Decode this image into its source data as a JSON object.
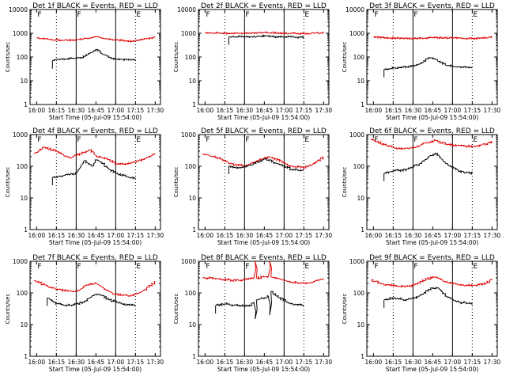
{
  "figure": {
    "xlabel": "Start Time (05-Jul-09 15:54:00)",
    "ylabel": "Counts/sec",
    "colors": {
      "events": "#000000",
      "lld": "#e00000"
    }
  },
  "chart_data": [
    {
      "type": "line",
      "panel": 1,
      "title": "Det 1f BLACK = Events, RED = LLD",
      "xlabel": "Start Time (05-Jul-09 15:54:00)",
      "ylabel": "Counts/sec",
      "x_ticks": [
        "16:00",
        "16:15",
        "16:30",
        "16:45",
        "17:00",
        "17:15",
        "17:30"
      ],
      "y_ticks": [
        "1",
        "10",
        "100",
        "1000",
        "10000"
      ],
      "y_scale": "log",
      "ylim": [
        1,
        10000
      ],
      "markers": [
        "F",
        "E"
      ],
      "series": [
        {
          "color": "#e00000",
          "x": [
            "16:00",
            "16:10",
            "16:20",
            "16:30",
            "16:38",
            "16:45",
            "16:52",
            "17:00",
            "17:10",
            "17:20",
            "17:30"
          ],
          "values": [
            620,
            560,
            500,
            520,
            620,
            700,
            600,
            520,
            460,
            540,
            680
          ]
        },
        {
          "color": "#000000",
          "x": [
            "16:12",
            "16:16",
            "16:25",
            "16:34",
            "16:40",
            "16:45",
            "16:50",
            "16:57",
            "17:05",
            "17:12",
            "17:15"
          ],
          "values": [
            70,
            80,
            85,
            95,
            140,
            210,
            130,
            85,
            78,
            75,
            78
          ]
        }
      ]
    },
    {
      "type": "line",
      "panel": 2,
      "title": "Det 2f BLACK = Events, RED = LLD",
      "xlabel": "Start Time (05-Jul-09 15:54:00)",
      "ylabel": "Counts/sec",
      "x_ticks": [
        "16:00",
        "16:15",
        "16:30",
        "16:45",
        "17:00",
        "17:15",
        "17:30"
      ],
      "y_ticks": [
        "1",
        "10",
        "100",
        "1000",
        "10000"
      ],
      "y_scale": "log",
      "ylim": [
        1,
        10000
      ],
      "markers": [
        "F",
        "E"
      ],
      "series": [
        {
          "color": "#e00000",
          "x": [
            "16:00",
            "16:15",
            "16:30",
            "16:45",
            "17:00",
            "17:15",
            "17:30"
          ],
          "values": [
            1050,
            1000,
            1000,
            1080,
            1000,
            980,
            1050
          ]
        },
        {
          "color": "#000000",
          "x": [
            "16:18",
            "16:30",
            "16:42",
            "16:45",
            "16:50",
            "17:00",
            "17:15"
          ],
          "values": [
            700,
            720,
            730,
            800,
            720,
            690,
            680
          ]
        }
      ]
    },
    {
      "type": "line",
      "panel": 3,
      "title": "Det 3f BLACK = Events, RED = LLD",
      "xlabel": "Start Time (05-Jul-09 15:54:00)",
      "ylabel": "Counts/sec",
      "x_ticks": [
        "16:00",
        "16:15",
        "16:30",
        "16:45",
        "17:00",
        "17:15",
        "17:30"
      ],
      "y_ticks": [
        "1",
        "10",
        "100",
        "1000",
        "10000"
      ],
      "y_scale": "log",
      "ylim": [
        1,
        10000
      ],
      "markers": [
        "F",
        "E"
      ],
      "series": [
        {
          "color": "#e00000",
          "x": [
            "16:00",
            "16:15",
            "16:30",
            "16:45",
            "17:00",
            "17:15",
            "17:30"
          ],
          "values": [
            680,
            620,
            600,
            650,
            630,
            590,
            680
          ]
        },
        {
          "color": "#000000",
          "x": [
            "16:08",
            "16:15",
            "16:25",
            "16:35",
            "16:42",
            "16:47",
            "16:55",
            "17:05",
            "17:15"
          ],
          "values": [
            30,
            35,
            38,
            50,
            95,
            80,
            45,
            38,
            35
          ]
        }
      ]
    },
    {
      "type": "line",
      "panel": 4,
      "title": "Det 4f BLACK = Events, RED = LLD",
      "xlabel": "Start Time (05-Jul-09 15:54:00)",
      "ylabel": "Counts/sec",
      "x_ticks": [
        "16:00",
        "16:15",
        "16:30",
        "16:45",
        "17:00",
        "17:15",
        "17:30"
      ],
      "y_ticks": [
        "1",
        "10",
        "100",
        "1000"
      ],
      "y_scale": "log",
      "ylim": [
        1,
        1000
      ],
      "markers": [
        "F",
        "E"
      ],
      "series": [
        {
          "color": "#e00000",
          "x": [
            "15:58",
            "16:05",
            "16:15",
            "16:25",
            "16:33",
            "16:40",
            "16:46",
            "16:52",
            "17:00",
            "17:10",
            "17:20",
            "17:30"
          ],
          "values": [
            250,
            400,
            300,
            180,
            250,
            330,
            200,
            180,
            120,
            120,
            160,
            250
          ]
        },
        {
          "color": "#000000",
          "x": [
            "16:12",
            "16:20",
            "16:30",
            "16:36",
            "16:42",
            "16:45",
            "16:50",
            "16:55",
            "17:00",
            "17:10",
            "17:15"
          ],
          "values": [
            45,
            50,
            60,
            150,
            100,
            160,
            120,
            80,
            60,
            45,
            40
          ]
        }
      ]
    },
    {
      "type": "line",
      "panel": 5,
      "title": "Det 5f BLACK = Events, RED = LLD",
      "xlabel": "Start Time (05-Jul-09 15:54:00)",
      "ylabel": "Counts/sec",
      "x_ticks": [
        "16:00",
        "16:15",
        "16:30",
        "16:45",
        "17:00",
        "17:15",
        "17:30"
      ],
      "y_ticks": [
        "1",
        "10",
        "100",
        "1000"
      ],
      "y_scale": "log",
      "ylim": [
        1,
        1000
      ],
      "markers": [
        "F",
        "E"
      ],
      "series": [
        {
          "color": "#e00000",
          "x": [
            "15:58",
            "16:10",
            "16:20",
            "16:30",
            "16:40",
            "16:48",
            "16:55",
            "17:05",
            "17:15",
            "17:22",
            "17:30"
          ],
          "values": [
            250,
            180,
            120,
            100,
            150,
            200,
            160,
            100,
            90,
            120,
            200
          ]
        },
        {
          "color": "#000000",
          "x": [
            "16:18",
            "16:25",
            "16:35",
            "16:45",
            "16:55",
            "17:05",
            "17:15"
          ],
          "values": [
            100,
            90,
            110,
            170,
            120,
            80,
            75
          ]
        }
      ]
    },
    {
      "type": "line",
      "panel": 6,
      "title": "Det 6f BLACK = Events, RED = LLD",
      "xlabel": "Start Time (05-Jul-09 15:54:00)",
      "ylabel": "Counts/sec",
      "x_ticks": [
        "16:00",
        "16:15",
        "16:30",
        "16:45",
        "17:00",
        "17:15",
        "17:30"
      ],
      "y_ticks": [
        "1",
        "10",
        "100",
        "1000"
      ],
      "y_scale": "log",
      "ylim": [
        1,
        1000
      ],
      "markers": [
        "F",
        "E"
      ],
      "series": [
        {
          "color": "#e00000",
          "x": [
            "15:58",
            "16:10",
            "16:20",
            "16:30",
            "16:40",
            "16:47",
            "16:55",
            "17:05",
            "17:15",
            "17:25",
            "17:30"
          ],
          "values": [
            700,
            450,
            350,
            380,
            550,
            650,
            500,
            450,
            420,
            500,
            600
          ]
        },
        {
          "color": "#000000",
          "x": [
            "16:08",
            "16:15",
            "16:25",
            "16:35",
            "16:42",
            "16:47",
            "16:55",
            "17:05",
            "17:15"
          ],
          "values": [
            60,
            70,
            80,
            120,
            200,
            260,
            120,
            70,
            60
          ]
        }
      ]
    },
    {
      "type": "line",
      "panel": 7,
      "title": "Det 7f BLACK = Events, RED = LLD",
      "xlabel": "Start Time (05-Jul-09 15:54:00)",
      "ylabel": "Counts/sec",
      "x_ticks": [
        "16:00",
        "16:15",
        "16:30",
        "16:45",
        "17:00",
        "17:15",
        "17:30"
      ],
      "y_ticks": [
        "1",
        "10",
        "100",
        "1000"
      ],
      "y_scale": "log",
      "ylim": [
        1,
        1000
      ],
      "markers": [
        "F",
        "E"
      ],
      "series": [
        {
          "color": "#e00000",
          "x": [
            "15:58",
            "16:10",
            "16:20",
            "16:30",
            "16:38",
            "16:45",
            "16:52",
            "17:00",
            "17:10",
            "17:20",
            "17:30"
          ],
          "values": [
            250,
            150,
            120,
            110,
            180,
            200,
            130,
            90,
            80,
            110,
            230
          ]
        },
        {
          "color": "#000000",
          "x": [
            "16:08",
            "16:15",
            "16:25",
            "16:35",
            "16:42",
            "16:48",
            "16:55",
            "17:05",
            "17:15"
          ],
          "values": [
            70,
            45,
            40,
            50,
            80,
            90,
            60,
            45,
            40
          ]
        }
      ]
    },
    {
      "type": "line",
      "panel": 8,
      "title": "Det 8f BLACK = Events, RED = LLD",
      "xlabel": "Start Time (05-Jul-09 15:54:00)",
      "ylabel": "Counts/sec",
      "x_ticks": [
        "16:00",
        "16:15",
        "16:30",
        "16:45",
        "17:00",
        "17:15",
        "17:30"
      ],
      "y_ticks": [
        "1",
        "10",
        "100",
        "1000"
      ],
      "y_scale": "log",
      "ylim": [
        1,
        1000
      ],
      "markers": [
        "F",
        "E"
      ],
      "series": [
        {
          "color": "#e00000",
          "x": [
            "15:58",
            "16:10",
            "16:20",
            "16:30",
            "16:37",
            "16:38",
            "16:39",
            "16:45",
            "16:48",
            "16:49",
            "16:50",
            "16:56",
            "17:05",
            "17:15",
            "17:30"
          ],
          "values": [
            300,
            280,
            250,
            260,
            300,
            1000,
            300,
            320,
            330,
            1000,
            320,
            280,
            220,
            200,
            280
          ]
        },
        {
          "color": "#000000",
          "x": [
            "16:08",
            "16:15",
            "16:25",
            "16:34",
            "16:37",
            "16:38",
            "16:39",
            "16:45",
            "16:48",
            "16:49",
            "16:50",
            "16:56",
            "17:05",
            "17:15"
          ],
          "values": [
            40,
            45,
            40,
            40,
            50,
            15,
            60,
            70,
            80,
            20,
            110,
            70,
            45,
            40
          ]
        }
      ]
    },
    {
      "type": "line",
      "panel": 9,
      "title": "Det 9f BLACK = Events, RED = LLD",
      "xlabel": "Start Time (05-Jul-09 15:54:00)",
      "ylabel": "Counts/sec",
      "x_ticks": [
        "16:00",
        "16:15",
        "16:30",
        "16:45",
        "17:00",
        "17:15",
        "17:30"
      ],
      "y_ticks": [
        "1",
        "10",
        "100",
        "1000"
      ],
      "y_scale": "log",
      "ylim": [
        1,
        1000
      ],
      "markers": [
        "F",
        "E"
      ],
      "series": [
        {
          "color": "#e00000",
          "x": [
            "15:58",
            "16:10",
            "16:20",
            "16:30",
            "16:40",
            "16:47",
            "16:55",
            "17:05",
            "17:15",
            "17:25",
            "17:30"
          ],
          "values": [
            250,
            180,
            160,
            170,
            280,
            320,
            220,
            180,
            170,
            200,
            280
          ]
        },
        {
          "color": "#000000",
          "x": [
            "16:08",
            "16:15",
            "16:25",
            "16:35",
            "16:42",
            "16:48",
            "16:55",
            "17:05",
            "17:15"
          ],
          "values": [
            60,
            70,
            60,
            80,
            130,
            150,
            80,
            50,
            45
          ]
        }
      ]
    }
  ]
}
